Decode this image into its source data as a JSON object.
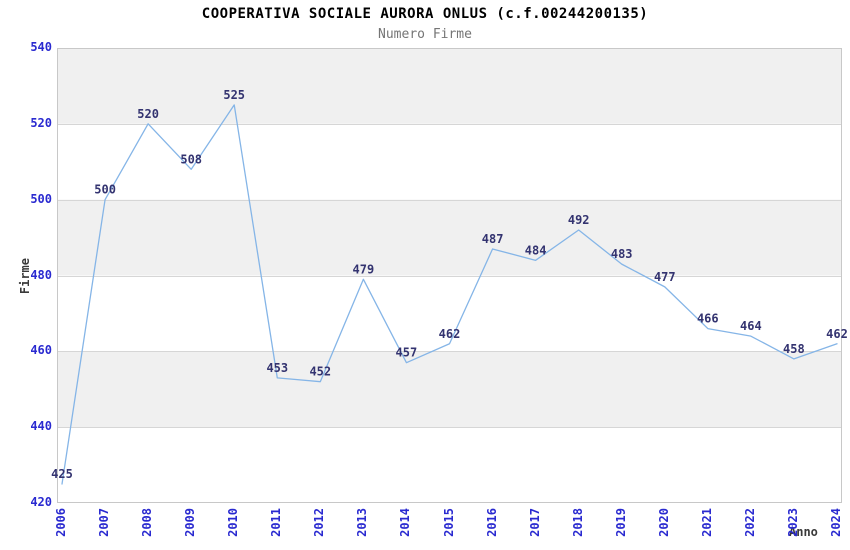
{
  "chart_data": {
    "type": "line",
    "title": "COOPERATIVA SOCIALE AURORA ONLUS (c.f.00244200135)",
    "subtitle": "Numero Firme",
    "xlabel": "Anno",
    "ylabel": "Firme",
    "x": [
      "2006",
      "2007",
      "2008",
      "2009",
      "2010",
      "2011",
      "2012",
      "2013",
      "2014",
      "2015",
      "2016",
      "2017",
      "2018",
      "2019",
      "2020",
      "2021",
      "2022",
      "2023",
      "2024"
    ],
    "values": [
      425,
      500,
      520,
      508,
      525,
      453,
      452,
      479,
      457,
      462,
      487,
      484,
      492,
      483,
      477,
      466,
      464,
      458,
      462
    ],
    "data_labels_visible": true,
    "ylim": [
      420,
      540
    ],
    "ytick_step": 20,
    "yticks": [
      420,
      440,
      460,
      480,
      500,
      520,
      540
    ],
    "grid": true,
    "alternating_bands": true,
    "legend": "none",
    "colors": {
      "line": "#85b5e7",
      "tick_label": "#2a2ad0",
      "data_label": "#333370",
      "band": "#f0f0f0",
      "band_alt": "#ffffff",
      "grid": "#d6d6d6",
      "border": "#c8c8c8",
      "title": "#000000",
      "subtitle": "#757575",
      "axis_title": "#3a3a3a"
    }
  }
}
